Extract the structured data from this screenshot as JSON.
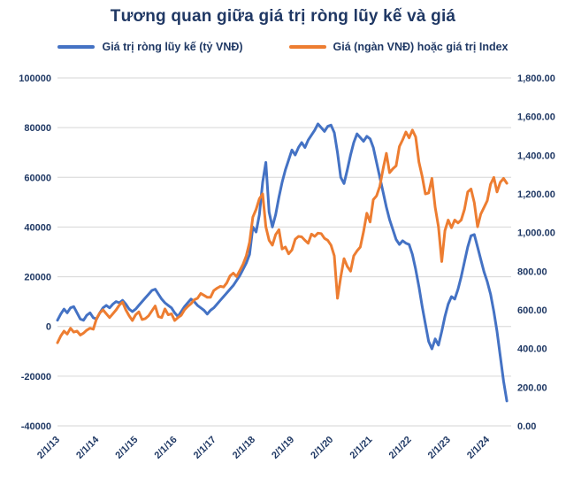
{
  "title": "Tương quan giữa giá trị ròng lũy kế và giá",
  "legend": [
    {
      "label": "Giá trị ròng lũy kế (tỷ VNĐ)",
      "color": "#4472C4"
    },
    {
      "label": "Giá (ngàn VNĐ) hoặc giá trị Index",
      "color": "#ED7D31"
    }
  ],
  "colors": {
    "accent_blue": "#4472C4",
    "accent_orange": "#ED7D31",
    "axis_text": "#1F3864",
    "gridline": "#D6D6D6",
    "background": "#FFFFFF"
  },
  "chart_data": {
    "type": "line",
    "title": "Tương quan giữa giá trị ròng lũy kế và giá",
    "grid": "horizontal",
    "legend_position": "top",
    "x_unit": "monthly points starting Jan 2013, one point per month",
    "x_tick_labels": [
      "2/1/13",
      "2/1/14",
      "2/1/15",
      "2/1/16",
      "2/1/17",
      "2/1/18",
      "2/1/19",
      "2/1/20",
      "2/1/21",
      "2/1/22",
      "2/1/23",
      "2/1/24"
    ],
    "left_axis": {
      "label": "Giá trị ròng lũy kế (tỷ VNĐ)",
      "min": -40000,
      "max": 100000,
      "ticks": [
        100000,
        80000,
        60000,
        40000,
        20000,
        0,
        -20000,
        -40000
      ]
    },
    "right_axis": {
      "label": "Giá (ngàn VNĐ) hoặc giá trị Index",
      "min": 0,
      "max": 1800,
      "ticks": [
        1800,
        1600,
        1400,
        1200,
        1000,
        800,
        600,
        400,
        200,
        0
      ]
    },
    "series": [
      {
        "id": "net-value",
        "name": "Giá trị ròng lũy kế (tỷ VNĐ)",
        "axis": "left",
        "color": "#4472C4",
        "values": [
          2500,
          5000,
          7000,
          5500,
          7500,
          8000,
          5500,
          3000,
          2500,
          4500,
          5500,
          3500,
          3000,
          5500,
          7500,
          8500,
          7500,
          9000,
          10000,
          9500,
          10500,
          9000,
          7000,
          6000,
          7000,
          8500,
          10000,
          11500,
          13000,
          14500,
          15000,
          13000,
          11000,
          9500,
          8500,
          7500,
          5500,
          4000,
          6000,
          8000,
          9500,
          11000,
          10000,
          8500,
          7500,
          6500,
          5000,
          6500,
          7500,
          9000,
          10500,
          12000,
          13500,
          15000,
          16500,
          18500,
          20500,
          23000,
          25500,
          29000,
          40000,
          38000,
          45000,
          58000,
          66000,
          46000,
          40000,
          45000,
          52000,
          58000,
          63000,
          67000,
          71000,
          69000,
          72000,
          74000,
          72000,
          75000,
          77000,
          79000,
          81500,
          80000,
          78500,
          80500,
          81000,
          78000,
          70000,
          60000,
          57500,
          63000,
          69000,
          74000,
          77500,
          76000,
          74500,
          76500,
          75500,
          72000,
          66000,
          60000,
          54000,
          48000,
          43000,
          39000,
          35000,
          33000,
          34500,
          33500,
          33000,
          29000,
          23000,
          16000,
          8000,
          1000,
          -6000,
          -9000,
          -5000,
          -7500,
          -2000,
          4000,
          9000,
          12000,
          11000,
          15000,
          20000,
          26000,
          32000,
          36500,
          37000,
          32000,
          27000,
          22000,
          18000,
          13000,
          6000,
          -2000,
          -12000,
          -22000,
          -30000
        ]
      },
      {
        "id": "price-index",
        "name": "Giá (ngàn VNĐ) hoặc giá trị Index",
        "axis": "right",
        "color": "#ED7D31",
        "values": [
          430,
          465,
          490,
          475,
          505,
          485,
          490,
          470,
          480,
          495,
          505,
          500,
          555,
          585,
          600,
          580,
          560,
          580,
          600,
          625,
          640,
          600,
          570,
          545,
          575,
          590,
          550,
          555,
          570,
          595,
          620,
          565,
          560,
          605,
          575,
          580,
          545,
          560,
          572,
          600,
          618,
          632,
          652,
          660,
          685,
          675,
          665,
          665,
          700,
          712,
          722,
          718,
          740,
          776,
          790,
          772,
          804,
          837,
          880,
          950,
          1080,
          1120,
          1175,
          1200,
          1030,
          960,
          935,
          990,
          1015,
          915,
          925,
          890,
          910,
          965,
          980,
          978,
          960,
          945,
          992,
          980,
          997,
          995,
          970,
          960,
          935,
          880,
          660,
          770,
          865,
          825,
          800,
          880,
          905,
          925,
          1005,
          1100,
          1055,
          1170,
          1190,
          1240,
          1330,
          1410,
          1310,
          1330,
          1345,
          1445,
          1480,
          1520,
          1490,
          1530,
          1495,
          1365,
          1290,
          1200,
          1205,
          1280,
          1130,
          1030,
          850,
          1010,
          1065,
          1025,
          1065,
          1050,
          1065,
          1120,
          1210,
          1225,
          1155,
          1030,
          1095,
          1130,
          1165,
          1250,
          1285,
          1210,
          1260,
          1280,
          1255
        ]
      }
    ]
  }
}
